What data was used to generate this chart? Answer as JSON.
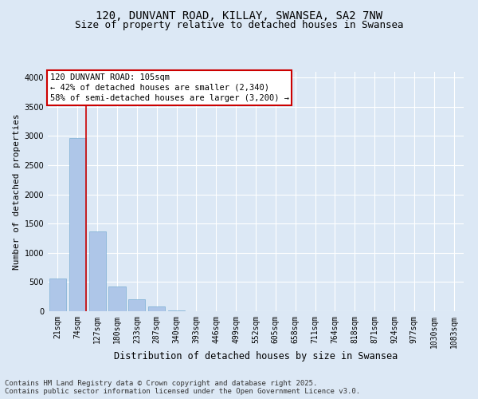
{
  "title": "120, DUNVANT ROAD, KILLAY, SWANSEA, SA2 7NW",
  "subtitle": "Size of property relative to detached houses in Swansea",
  "xlabel": "Distribution of detached houses by size in Swansea",
  "ylabel": "Number of detached properties",
  "categories": [
    "21sqm",
    "74sqm",
    "127sqm",
    "180sqm",
    "233sqm",
    "287sqm",
    "340sqm",
    "393sqm",
    "446sqm",
    "499sqm",
    "552sqm",
    "605sqm",
    "658sqm",
    "711sqm",
    "764sqm",
    "818sqm",
    "871sqm",
    "924sqm",
    "977sqm",
    "1030sqm",
    "1083sqm"
  ],
  "values": [
    560,
    2960,
    1360,
    430,
    200,
    85,
    20,
    5,
    0,
    0,
    0,
    0,
    0,
    0,
    0,
    0,
    0,
    0,
    0,
    0,
    0
  ],
  "bar_color": "#aec6e8",
  "bar_edgecolor": "#7bafd4",
  "bg_color": "#dce8f5",
  "grid_color": "#ffffff",
  "vline_color": "#cc0000",
  "annotation_title": "120 DUNVANT ROAD: 105sqm",
  "annotation_line1": "← 42% of detached houses are smaller (2,340)",
  "annotation_line2": "58% of semi-detached houses are larger (3,200) →",
  "annotation_box_color": "#cc0000",
  "ylim": [
    0,
    4100
  ],
  "yticks": [
    0,
    500,
    1000,
    1500,
    2000,
    2500,
    3000,
    3500,
    4000
  ],
  "footer_line1": "Contains HM Land Registry data © Crown copyright and database right 2025.",
  "footer_line2": "Contains public sector information licensed under the Open Government Licence v3.0.",
  "title_fontsize": 10,
  "subtitle_fontsize": 9,
  "xlabel_fontsize": 8.5,
  "ylabel_fontsize": 8,
  "tick_fontsize": 7,
  "annotation_fontsize": 7.5,
  "footer_fontsize": 6.5
}
